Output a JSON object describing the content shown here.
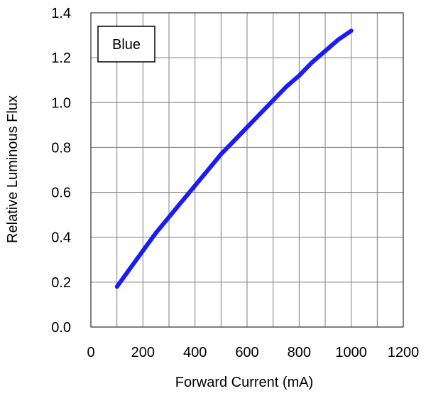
{
  "chart_data": {
    "type": "line",
    "title": "",
    "xlabel": "Forward Current (mA)",
    "ylabel": "Relative Luminous Flux",
    "xlim": [
      0,
      1200
    ],
    "ylim": [
      0.0,
      1.4
    ],
    "x_ticks": [
      0,
      200,
      400,
      600,
      800,
      1000,
      1200
    ],
    "x_tick_labels": [
      "0",
      "200",
      "400",
      "600",
      "800",
      "1000",
      "1200"
    ],
    "y_ticks": [
      0.0,
      0.2,
      0.4,
      0.6,
      0.8,
      1.0,
      1.2,
      1.4
    ],
    "y_tick_labels": [
      "0.0",
      "0.2",
      "0.4",
      "0.6",
      "0.8",
      "1.0",
      "1.2",
      "1.4"
    ],
    "grid": true,
    "legend": {
      "placement": "top-left",
      "entries": [
        "Blue"
      ]
    },
    "series": [
      {
        "name": "Blue",
        "color": "#1a1aff",
        "x": [
          100,
          150,
          200,
          250,
          300,
          350,
          400,
          450,
          500,
          550,
          600,
          650,
          700,
          750,
          800,
          850,
          900,
          950,
          1000
        ],
        "y": [
          0.18,
          0.26,
          0.34,
          0.42,
          0.49,
          0.56,
          0.63,
          0.7,
          0.77,
          0.83,
          0.89,
          0.95,
          1.01,
          1.07,
          1.12,
          1.18,
          1.23,
          1.28,
          1.32
        ]
      }
    ]
  }
}
